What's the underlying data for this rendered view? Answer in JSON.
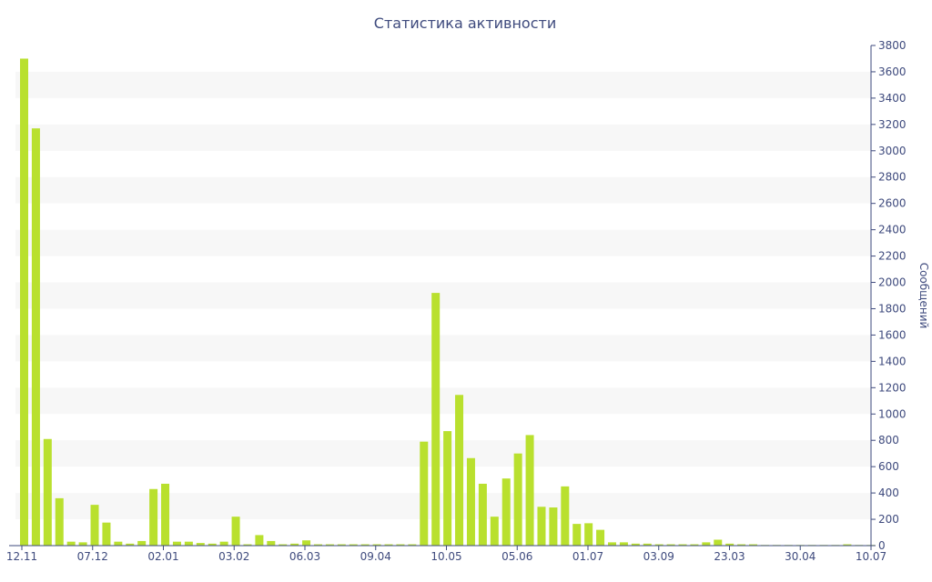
{
  "chart_data": {
    "type": "bar",
    "title": "Статистика активности",
    "ylabel": "Сообщений",
    "y_axis_position": "right",
    "ylim": [
      0,
      3800
    ],
    "ytick_step": 200,
    "x_tick_labels": [
      "12.11",
      "07.12",
      "02.01",
      "03.02",
      "06.03",
      "09.04",
      "10.05",
      "05.06",
      "01.07",
      "03.09",
      "23.03",
      "30.04",
      "10.07"
    ],
    "colors": {
      "bar": "#b9e02e",
      "text": "#3e4a7d",
      "band": "#f7f7f7"
    },
    "values": [
      3700,
      3170,
      810,
      360,
      30,
      25,
      310,
      175,
      30,
      15,
      35,
      430,
      470,
      30,
      30,
      20,
      15,
      30,
      220,
      10,
      80,
      35,
      10,
      15,
      40,
      10,
      10,
      10,
      10,
      10,
      10,
      10,
      10,
      10,
      790,
      1920,
      870,
      1145,
      665,
      470,
      220,
      510,
      700,
      840,
      295,
      290,
      450,
      165,
      170,
      120,
      25,
      25,
      15,
      15,
      10,
      10,
      10,
      10,
      25,
      45,
      15,
      10,
      10,
      5,
      5,
      5,
      5,
      5,
      5,
      5,
      10,
      5,
      5
    ]
  }
}
